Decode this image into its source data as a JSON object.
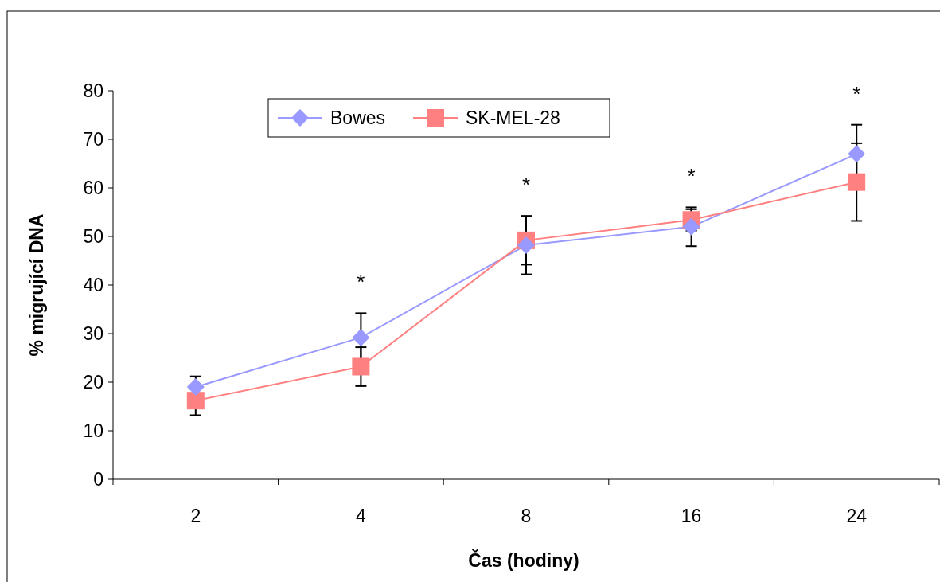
{
  "chart_data": {
    "type": "line",
    "xlabel": "Čas (hodiny)",
    "ylabel": "% migrující DNA",
    "categories": [
      "2",
      "4",
      "8",
      "16",
      "24"
    ],
    "series": [
      {
        "name": "Bowes",
        "color": "#9999ff",
        "marker": "diamond",
        "values": [
          19,
          29.2,
          48.2,
          52,
          67
        ],
        "errors": [
          2.2,
          5,
          6,
          4,
          6
        ]
      },
      {
        "name": "SK-MEL-28",
        "color": "#ff8080",
        "marker": "square",
        "values": [
          16.2,
          23.2,
          49.2,
          53.4,
          61.2
        ],
        "errors": [
          3,
          4,
          5,
          2.2,
          8
        ]
      }
    ],
    "ylim": [
      0,
      80
    ],
    "yticks": [
      0,
      10,
      20,
      30,
      40,
      50,
      60,
      70,
      80
    ],
    "grid": false,
    "legend": "top left",
    "annotations": [
      "*",
      "*",
      "*",
      "*"
    ]
  }
}
